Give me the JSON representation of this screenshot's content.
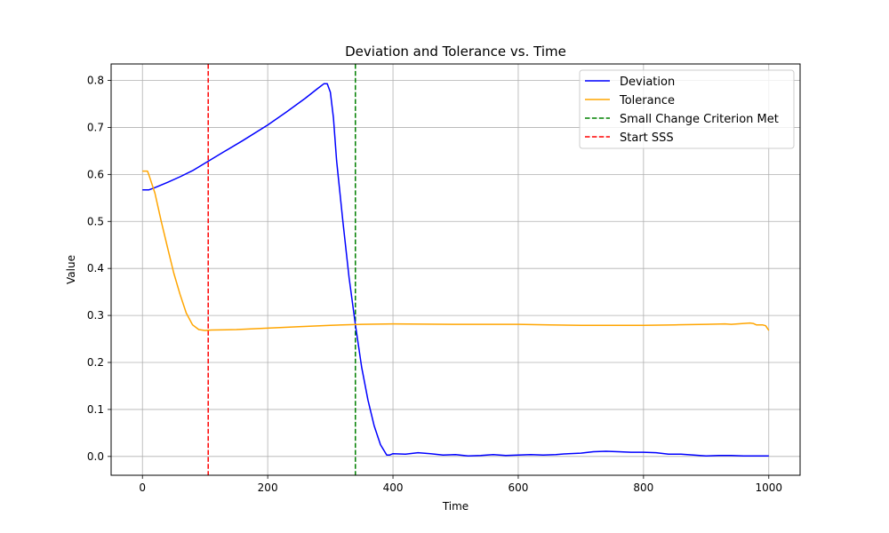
{
  "chart_data": {
    "type": "line",
    "title": "Deviation and Tolerance vs. Time",
    "xlabel": "Time",
    "ylabel": "Value",
    "xlim": [
      -50,
      1050
    ],
    "ylim": [
      -0.04,
      0.835
    ],
    "xticks": [
      0,
      200,
      400,
      600,
      800,
      1000
    ],
    "yticks": [
      0.0,
      0.1,
      0.2,
      0.3,
      0.4,
      0.5,
      0.6,
      0.7,
      0.8
    ],
    "grid": true,
    "legend_position": "top-right",
    "series": [
      {
        "name": "Deviation",
        "color": "#0000ff",
        "style": "solid",
        "x": [
          0,
          10,
          20,
          40,
          60,
          80,
          105,
          130,
          160,
          200,
          230,
          260,
          280,
          290,
          295,
          300,
          305,
          310,
          320,
          330,
          340,
          350,
          360,
          370,
          380,
          390,
          395,
          400,
          420,
          440,
          460,
          480,
          500,
          520,
          540,
          560,
          580,
          600,
          620,
          640,
          660,
          680,
          700,
          720,
          740,
          760,
          780,
          800,
          820,
          840,
          860,
          880,
          900,
          920,
          940,
          960,
          980,
          1000
        ],
        "y": [
          0.567,
          0.567,
          0.572,
          0.583,
          0.595,
          0.608,
          0.628,
          0.648,
          0.672,
          0.705,
          0.733,
          0.762,
          0.783,
          0.793,
          0.793,
          0.775,
          0.72,
          0.63,
          0.5,
          0.38,
          0.28,
          0.19,
          0.12,
          0.065,
          0.025,
          0.003,
          0.003,
          0.006,
          0.005,
          0.008,
          0.006,
          0.003,
          0.004,
          0.001,
          0.002,
          0.004,
          0.002,
          0.003,
          0.004,
          0.003,
          0.004,
          0.006,
          0.007,
          0.01,
          0.011,
          0.01,
          0.009,
          0.009,
          0.008,
          0.005,
          0.005,
          0.003,
          0.001,
          0.002,
          0.002,
          0.001,
          0.001,
          0.001
        ]
      },
      {
        "name": "Tolerance",
        "color": "#ffa500",
        "style": "solid",
        "x": [
          0,
          3,
          8,
          10,
          20,
          30,
          40,
          50,
          60,
          70,
          80,
          90,
          100,
          110,
          150,
          200,
          250,
          300,
          350,
          400,
          500,
          600,
          650,
          700,
          750,
          800,
          850,
          900,
          930,
          940,
          960,
          970,
          975,
          980,
          990,
          995,
          1000
        ],
        "y": [
          0.607,
          0.607,
          0.607,
          0.6,
          0.56,
          0.5,
          0.445,
          0.39,
          0.345,
          0.305,
          0.28,
          0.27,
          0.268,
          0.269,
          0.27,
          0.273,
          0.276,
          0.279,
          0.281,
          0.282,
          0.281,
          0.281,
          0.28,
          0.279,
          0.279,
          0.279,
          0.28,
          0.281,
          0.282,
          0.281,
          0.283,
          0.284,
          0.283,
          0.28,
          0.28,
          0.278,
          0.268
        ]
      }
    ],
    "vlines": [
      {
        "name": "Small Change Criterion Met",
        "x": 340,
        "color": "#008000",
        "style": "dashed"
      },
      {
        "name": "Start SSS",
        "x": 105,
        "color": "#ff0000",
        "style": "dashed"
      }
    ]
  }
}
